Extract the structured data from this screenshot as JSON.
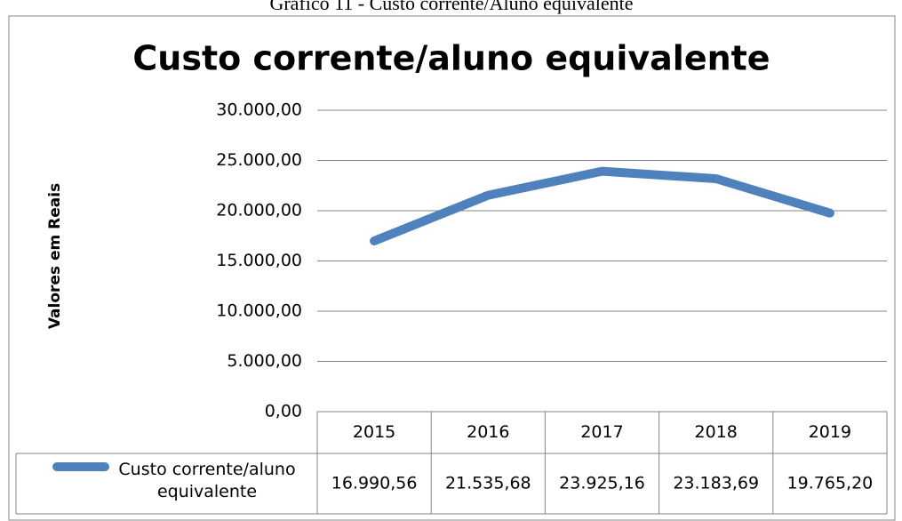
{
  "caption": "Gráfico 11 - Custo corrente/Aluno equivalente",
  "chart_data": {
    "type": "line",
    "title": "Custo corrente/aluno equivalente",
    "y_label": "Valores em Reais",
    "categories": [
      "2015",
      "2016",
      "2017",
      "2018",
      "2019"
    ],
    "series": [
      {
        "name": "Custo corrente/aluno equivalente",
        "color": "#4f81bd",
        "values": [
          16990.56,
          21535.68,
          23925.16,
          23183.69,
          19765.2
        ],
        "value_labels": [
          "16.990,56",
          "21.535,68",
          "23.925,16",
          "23.183,69",
          "19.765,20"
        ]
      }
    ],
    "ylim": [
      0,
      30000
    ],
    "yticks": [
      {
        "value": 0,
        "label": "0,00"
      },
      {
        "value": 5000,
        "label": "5.000,00"
      },
      {
        "value": 10000,
        "label": "10.000,00"
      },
      {
        "value": 15000,
        "label": "15.000,00"
      },
      {
        "value": 20000,
        "label": "20.000,00"
      },
      {
        "value": 25000,
        "label": "25.000,00"
      },
      {
        "value": 30000,
        "label": "30.000,00"
      }
    ],
    "grid": true,
    "data_table": true
  }
}
